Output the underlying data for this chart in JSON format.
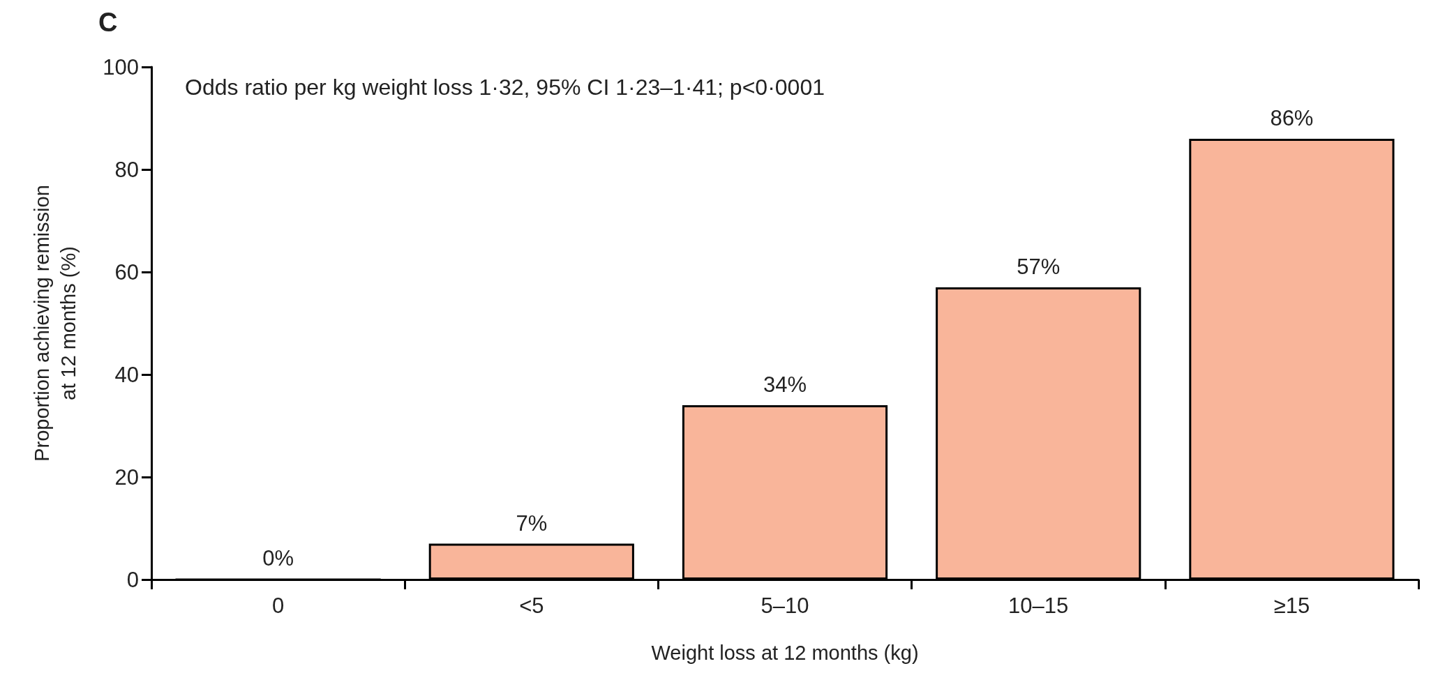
{
  "chart_data": {
    "type": "bar",
    "title": "C",
    "xlabel": "Weight loss at 12 months (kg)",
    "ylabel": "Proportion achieving remission\nat 12 months (%)",
    "annotations": [
      "Odds ratio per kg weight loss 1·32, 95% CI 1·23–1·41; p<0·0001"
    ],
    "categories": [
      "0",
      "<5",
      "5–10",
      "10–15",
      "≥15"
    ],
    "values": [
      0,
      7,
      34,
      57,
      86
    ],
    "value_labels": [
      "0%",
      "7%",
      "34%",
      "57%",
      "86%"
    ],
    "color": "#f9b59a",
    "ylim": [
      0,
      100
    ],
    "yticks": [
      0,
      20,
      40,
      60,
      80,
      100
    ],
    "grid": false
  }
}
